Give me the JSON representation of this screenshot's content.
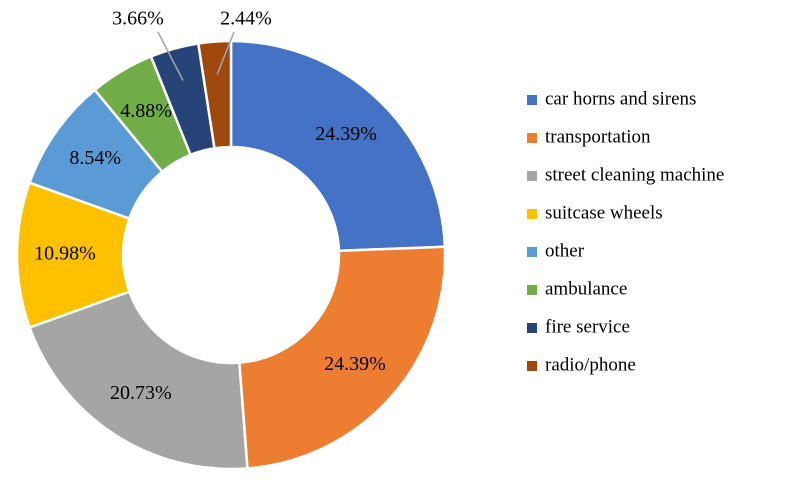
{
  "chart_data": {
    "type": "donut",
    "categories": [
      "car horns and sirens",
      "transportation",
      "street cleaning machine",
      "suitcase wheels",
      "other",
      "ambulance",
      "fire service",
      "radio/phone"
    ],
    "values": [
      24.39,
      24.39,
      20.73,
      10.98,
      8.54,
      4.88,
      3.66,
      2.44
    ],
    "value_labels": [
      "24.39%",
      "24.39%",
      "20.73%",
      "10.98%",
      "8.54%",
      "4.88%",
      "3.66%",
      "2.44%"
    ],
    "colors": [
      "#4472c4",
      "#ed7d31",
      "#a5a5a5",
      "#ffc000",
      "#5b9bd5",
      "#70ad47",
      "#264478",
      "#9e480e"
    ],
    "legend": "right"
  }
}
